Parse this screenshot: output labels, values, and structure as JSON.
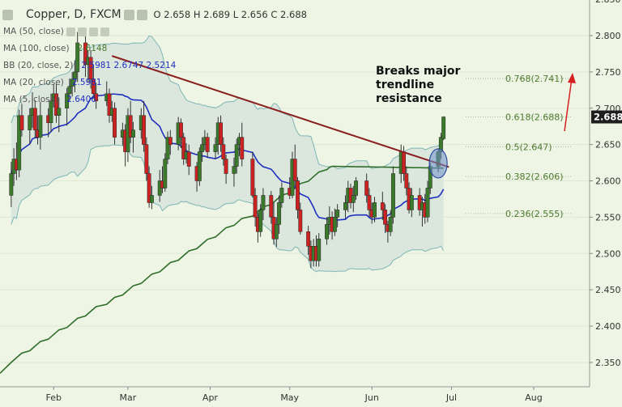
{
  "header": {
    "symbol": "Copper, D, FXCM",
    "ohlc": "O 2.658 H 2.689 L 2.656 C 2.688"
  },
  "indicators": [
    {
      "label": "MA (50, close)",
      "value": "",
      "color": "#444444"
    },
    {
      "label": "MA (100, close)",
      "value": "2.6148",
      "color": "#4a7a2a"
    },
    {
      "label": "BB (20, close, 2)",
      "value": "2.5981  2.6747  2.5214",
      "color": "#1f2fbf"
    },
    {
      "label": "MA (20, close)",
      "value": "2.5981",
      "color": "#1f2fbf"
    },
    {
      "label": "MA (5, close)",
      "value": "2.6406",
      "color": "#444444"
    }
  ],
  "annotation": {
    "lines": [
      "Breaks major",
      "trendline",
      "resistance"
    ]
  },
  "colors": {
    "background": "#eef5e4",
    "bull": "#3a7a2a",
    "bear": "#cc2222",
    "ma20": "#1f2fbf",
    "ma100": "#4e7a2e",
    "ma200": "#2f6e2a",
    "bands_fill": "#d7e4dc",
    "bands_line": "#7fb5b5",
    "trendline": "#8a1f1f",
    "arrow": "#d42020",
    "fib": "#4d7a2e",
    "last_price_bg": "#1e1e1e"
  },
  "chart_data": {
    "type": "candlestick",
    "x_axis": [
      "Feb",
      "Mar",
      "Apr",
      "May",
      "Jun",
      "Jul",
      "Aug"
    ],
    "y_axis": [
      2.35,
      2.4,
      2.45,
      2.5,
      2.55,
      2.6,
      2.65,
      2.7,
      2.75,
      2.8,
      2.85
    ],
    "ylim": [
      2.34,
      2.86
    ],
    "last_price": "2.688",
    "fib_levels": [
      {
        "label": "0.768(2.741)",
        "value": 2.741
      },
      {
        "label": "0.618(2.688)",
        "value": 2.688
      },
      {
        "label": "0.5(2.647)",
        "value": 2.647
      },
      {
        "label": "0.382(2.606)",
        "value": 2.606
      },
      {
        "label": "0.236(2.555)",
        "value": 2.555
      }
    ],
    "trendline": {
      "start": {
        "date": "2017-02-23",
        "value": 2.772
      },
      "end": {
        "date": "2017-06-30",
        "value": 2.619
      }
    },
    "breakout_marker": {
      "date": "2017-06-26",
      "value": 2.624
    },
    "candles": [
      {
        "d": "2017-01-16",
        "o": 2.58,
        "h": 2.626,
        "l": 2.564,
        "c": 2.61
      },
      {
        "d": "2017-01-17",
        "o": 2.61,
        "h": 2.645,
        "l": 2.593,
        "c": 2.63
      },
      {
        "d": "2017-01-18",
        "o": 2.63,
        "h": 2.653,
        "l": 2.601,
        "c": 2.615
      },
      {
        "d": "2017-01-19",
        "o": 2.615,
        "h": 2.698,
        "l": 2.605,
        "c": 2.69
      },
      {
        "d": "2017-01-20",
        "o": 2.69,
        "h": 2.706,
        "l": 2.661,
        "c": 2.67
      },
      {
        "d": "2017-01-23",
        "o": 2.67,
        "h": 2.7,
        "l": 2.65,
        "c": 2.69
      },
      {
        "d": "2017-01-24",
        "o": 2.69,
        "h": 2.722,
        "l": 2.673,
        "c": 2.7
      },
      {
        "d": "2017-01-25",
        "o": 2.7,
        "h": 2.711,
        "l": 2.659,
        "c": 2.67
      },
      {
        "d": "2017-01-26",
        "o": 2.67,
        "h": 2.69,
        "l": 2.65,
        "c": 2.66
      },
      {
        "d": "2017-01-27",
        "o": 2.66,
        "h": 2.709,
        "l": 2.643,
        "c": 2.69
      },
      {
        "d": "2017-01-30",
        "o": 2.69,
        "h": 2.7,
        "l": 2.66,
        "c": 2.68
      },
      {
        "d": "2017-01-31",
        "o": 2.68,
        "h": 2.72,
        "l": 2.667,
        "c": 2.71
      },
      {
        "d": "2017-02-01",
        "o": 2.71,
        "h": 2.733,
        "l": 2.701,
        "c": 2.72
      },
      {
        "d": "2017-02-02",
        "o": 2.72,
        "h": 2.733,
        "l": 2.68,
        "c": 2.69
      },
      {
        "d": "2017-02-03",
        "o": 2.69,
        "h": 2.715,
        "l": 2.667,
        "c": 2.7
      },
      {
        "d": "2017-02-06",
        "o": 2.7,
        "h": 2.728,
        "l": 2.676,
        "c": 2.72
      },
      {
        "d": "2017-02-07",
        "o": 2.72,
        "h": 2.741,
        "l": 2.71,
        "c": 2.73
      },
      {
        "d": "2017-02-08",
        "o": 2.73,
        "h": 2.75,
        "l": 2.716,
        "c": 2.74
      },
      {
        "d": "2017-02-09",
        "o": 2.74,
        "h": 2.766,
        "l": 2.722,
        "c": 2.75
      },
      {
        "d": "2017-02-10",
        "o": 2.75,
        "h": 2.805,
        "l": 2.736,
        "c": 2.79
      },
      {
        "d": "2017-02-13",
        "o": 2.79,
        "h": 2.8,
        "l": 2.743,
        "c": 2.76
      },
      {
        "d": "2017-02-14",
        "o": 2.76,
        "h": 2.78,
        "l": 2.736,
        "c": 2.77
      },
      {
        "d": "2017-02-15",
        "o": 2.77,
        "h": 2.78,
        "l": 2.727,
        "c": 2.74
      },
      {
        "d": "2017-02-16",
        "o": 2.74,
        "h": 2.76,
        "l": 2.714,
        "c": 2.72
      },
      {
        "d": "2017-02-17",
        "o": 2.72,
        "h": 2.735,
        "l": 2.699,
        "c": 2.71
      },
      {
        "d": "2017-02-21",
        "o": 2.71,
        "h": 2.737,
        "l": 2.703,
        "c": 2.72
      },
      {
        "d": "2017-02-22",
        "o": 2.72,
        "h": 2.727,
        "l": 2.68,
        "c": 2.69
      },
      {
        "d": "2017-02-23",
        "o": 2.69,
        "h": 2.71,
        "l": 2.681,
        "c": 2.7
      },
      {
        "d": "2017-02-24",
        "o": 2.7,
        "h": 2.708,
        "l": 2.65,
        "c": 2.66
      },
      {
        "d": "2017-02-27",
        "o": 2.66,
        "h": 2.68,
        "l": 2.649,
        "c": 2.67
      },
      {
        "d": "2017-02-28",
        "o": 2.67,
        "h": 2.678,
        "l": 2.62,
        "c": 2.64
      },
      {
        "d": "2017-03-01",
        "o": 2.64,
        "h": 2.7,
        "l": 2.626,
        "c": 2.69
      },
      {
        "d": "2017-03-02",
        "o": 2.69,
        "h": 2.71,
        "l": 2.652,
        "c": 2.66
      },
      {
        "d": "2017-03-03",
        "o": 2.66,
        "h": 2.681,
        "l": 2.639,
        "c": 2.67
      },
      {
        "d": "2017-03-06",
        "o": 2.67,
        "h": 2.7,
        "l": 2.658,
        "c": 2.69
      },
      {
        "d": "2017-03-07",
        "o": 2.69,
        "h": 2.71,
        "l": 2.64,
        "c": 2.65
      },
      {
        "d": "2017-03-08",
        "o": 2.65,
        "h": 2.66,
        "l": 2.6,
        "c": 2.61
      },
      {
        "d": "2017-03-09",
        "o": 2.61,
        "h": 2.62,
        "l": 2.563,
        "c": 2.57
      },
      {
        "d": "2017-03-10",
        "o": 2.57,
        "h": 2.593,
        "l": 2.561,
        "c": 2.58
      },
      {
        "d": "2017-03-13",
        "o": 2.58,
        "h": 2.615,
        "l": 2.571,
        "c": 2.6
      },
      {
        "d": "2017-03-14",
        "o": 2.6,
        "h": 2.62,
        "l": 2.583,
        "c": 2.59
      },
      {
        "d": "2017-03-15",
        "o": 2.59,
        "h": 2.638,
        "l": 2.585,
        "c": 2.63
      },
      {
        "d": "2017-03-16",
        "o": 2.63,
        "h": 2.668,
        "l": 2.623,
        "c": 2.66
      },
      {
        "d": "2017-03-17",
        "o": 2.66,
        "h": 2.67,
        "l": 2.636,
        "c": 2.65
      },
      {
        "d": "2017-03-20",
        "o": 2.65,
        "h": 2.688,
        "l": 2.642,
        "c": 2.68
      },
      {
        "d": "2017-03-21",
        "o": 2.68,
        "h": 2.686,
        "l": 2.645,
        "c": 2.66
      },
      {
        "d": "2017-03-22",
        "o": 2.66,
        "h": 2.666,
        "l": 2.622,
        "c": 2.63
      },
      {
        "d": "2017-03-23",
        "o": 2.63,
        "h": 2.652,
        "l": 2.624,
        "c": 2.64
      },
      {
        "d": "2017-03-24",
        "o": 2.64,
        "h": 2.65,
        "l": 2.608,
        "c": 2.62
      },
      {
        "d": "2017-03-27",
        "o": 2.62,
        "h": 2.626,
        "l": 2.585,
        "c": 2.6
      },
      {
        "d": "2017-03-28",
        "o": 2.6,
        "h": 2.646,
        "l": 2.593,
        "c": 2.64
      },
      {
        "d": "2017-03-29",
        "o": 2.64,
        "h": 2.66,
        "l": 2.626,
        "c": 2.65
      },
      {
        "d": "2017-03-30",
        "o": 2.65,
        "h": 2.67,
        "l": 2.642,
        "c": 2.66
      },
      {
        "d": "2017-03-31",
        "o": 2.66,
        "h": 2.666,
        "l": 2.632,
        "c": 2.64
      },
      {
        "d": "2017-04-03",
        "o": 2.64,
        "h": 2.66,
        "l": 2.63,
        "c": 2.65
      },
      {
        "d": "2017-04-04",
        "o": 2.65,
        "h": 2.688,
        "l": 2.636,
        "c": 2.68
      },
      {
        "d": "2017-04-05",
        "o": 2.68,
        "h": 2.69,
        "l": 2.64,
        "c": 2.65
      },
      {
        "d": "2017-04-06",
        "o": 2.65,
        "h": 2.66,
        "l": 2.621,
        "c": 2.63
      },
      {
        "d": "2017-04-07",
        "o": 2.63,
        "h": 2.636,
        "l": 2.596,
        "c": 2.61
      },
      {
        "d": "2017-04-10",
        "o": 2.61,
        "h": 2.632,
        "l": 2.592,
        "c": 2.62
      },
      {
        "d": "2017-04-11",
        "o": 2.62,
        "h": 2.658,
        "l": 2.61,
        "c": 2.65
      },
      {
        "d": "2017-04-12",
        "o": 2.65,
        "h": 2.666,
        "l": 2.634,
        "c": 2.66
      },
      {
        "d": "2017-04-13",
        "o": 2.66,
        "h": 2.68,
        "l": 2.62,
        "c": 2.63
      },
      {
        "d": "2017-04-17",
        "o": 2.63,
        "h": 2.64,
        "l": 2.577,
        "c": 2.58
      },
      {
        "d": "2017-04-18",
        "o": 2.58,
        "h": 2.59,
        "l": 2.537,
        "c": 2.55
      },
      {
        "d": "2017-04-19",
        "o": 2.55,
        "h": 2.556,
        "l": 2.515,
        "c": 2.53
      },
      {
        "d": "2017-04-20",
        "o": 2.53,
        "h": 2.568,
        "l": 2.523,
        "c": 2.56
      },
      {
        "d": "2017-04-21",
        "o": 2.56,
        "h": 2.59,
        "l": 2.546,
        "c": 2.58
      },
      {
        "d": "2017-04-24",
        "o": 2.58,
        "h": 2.586,
        "l": 2.541,
        "c": 2.55
      },
      {
        "d": "2017-04-25",
        "o": 2.55,
        "h": 2.57,
        "l": 2.512,
        "c": 2.52
      },
      {
        "d": "2017-04-26",
        "o": 2.52,
        "h": 2.55,
        "l": 2.509,
        "c": 2.54
      },
      {
        "d": "2017-04-27",
        "o": 2.54,
        "h": 2.58,
        "l": 2.527,
        "c": 2.57
      },
      {
        "d": "2017-04-28",
        "o": 2.57,
        "h": 2.598,
        "l": 2.563,
        "c": 2.59
      },
      {
        "d": "2017-05-01",
        "o": 2.59,
        "h": 2.605,
        "l": 2.575,
        "c": 2.58
      },
      {
        "d": "2017-05-02",
        "o": 2.58,
        "h": 2.64,
        "l": 2.576,
        "c": 2.63
      },
      {
        "d": "2017-05-03",
        "o": 2.63,
        "h": 2.65,
        "l": 2.592,
        "c": 2.6
      },
      {
        "d": "2017-05-04",
        "o": 2.6,
        "h": 2.605,
        "l": 2.548,
        "c": 2.56
      },
      {
        "d": "2017-05-05",
        "o": 2.56,
        "h": 2.57,
        "l": 2.526,
        "c": 2.53
      },
      {
        "d": "2017-05-08",
        "o": 2.53,
        "h": 2.538,
        "l": 2.498,
        "c": 2.51
      },
      {
        "d": "2017-05-09",
        "o": 2.51,
        "h": 2.518,
        "l": 2.48,
        "c": 2.49
      },
      {
        "d": "2017-05-10",
        "o": 2.49,
        "h": 2.52,
        "l": 2.482,
        "c": 2.51
      },
      {
        "d": "2017-05-11",
        "o": 2.51,
        "h": 2.525,
        "l": 2.482,
        "c": 2.49
      },
      {
        "d": "2017-05-12",
        "o": 2.49,
        "h": 2.528,
        "l": 2.482,
        "c": 2.52
      },
      {
        "d": "2017-05-15",
        "o": 2.52,
        "h": 2.55,
        "l": 2.512,
        "c": 2.54
      },
      {
        "d": "2017-05-16",
        "o": 2.54,
        "h": 2.565,
        "l": 2.526,
        "c": 2.55
      },
      {
        "d": "2017-05-17",
        "o": 2.55,
        "h": 2.558,
        "l": 2.519,
        "c": 2.53
      },
      {
        "d": "2017-05-18",
        "o": 2.53,
        "h": 2.562,
        "l": 2.524,
        "c": 2.55
      },
      {
        "d": "2017-05-19",
        "o": 2.55,
        "h": 2.568,
        "l": 2.536,
        "c": 2.56
      },
      {
        "d": "2017-05-22",
        "o": 2.56,
        "h": 2.58,
        "l": 2.548,
        "c": 2.57
      },
      {
        "d": "2017-05-23",
        "o": 2.57,
        "h": 2.6,
        "l": 2.557,
        "c": 2.59
      },
      {
        "d": "2017-05-24",
        "o": 2.59,
        "h": 2.596,
        "l": 2.562,
        "c": 2.57
      },
      {
        "d": "2017-05-25",
        "o": 2.57,
        "h": 2.593,
        "l": 2.557,
        "c": 2.58
      },
      {
        "d": "2017-05-26",
        "o": 2.58,
        "h": 2.605,
        "l": 2.574,
        "c": 2.6
      },
      {
        "d": "2017-05-30",
        "o": 2.6,
        "h": 2.61,
        "l": 2.57,
        "c": 2.58
      },
      {
        "d": "2017-05-31",
        "o": 2.58,
        "h": 2.59,
        "l": 2.55,
        "c": 2.56
      },
      {
        "d": "2017-06-01",
        "o": 2.56,
        "h": 2.57,
        "l": 2.541,
        "c": 2.55
      },
      {
        "d": "2017-06-02",
        "o": 2.55,
        "h": 2.578,
        "l": 2.543,
        "c": 2.57
      },
      {
        "d": "2017-06-05",
        "o": 2.57,
        "h": 2.585,
        "l": 2.546,
        "c": 2.56
      },
      {
        "d": "2017-06-06",
        "o": 2.56,
        "h": 2.568,
        "l": 2.528,
        "c": 2.54
      },
      {
        "d": "2017-06-07",
        "o": 2.54,
        "h": 2.545,
        "l": 2.515,
        "c": 2.53
      },
      {
        "d": "2017-06-08",
        "o": 2.53,
        "h": 2.56,
        "l": 2.524,
        "c": 2.55
      },
      {
        "d": "2017-06-09",
        "o": 2.55,
        "h": 2.62,
        "l": 2.541,
        "c": 2.61
      },
      {
        "d": "2017-06-12",
        "o": 2.61,
        "h": 2.65,
        "l": 2.597,
        "c": 2.64
      },
      {
        "d": "2017-06-13",
        "o": 2.64,
        "h": 2.648,
        "l": 2.6,
        "c": 2.61
      },
      {
        "d": "2017-06-14",
        "o": 2.61,
        "h": 2.62,
        "l": 2.58,
        "c": 2.59
      },
      {
        "d": "2017-06-15",
        "o": 2.59,
        "h": 2.598,
        "l": 2.555,
        "c": 2.56
      },
      {
        "d": "2017-06-16",
        "o": 2.56,
        "h": 2.59,
        "l": 2.55,
        "c": 2.58
      },
      {
        "d": "2017-06-19",
        "o": 2.58,
        "h": 2.59,
        "l": 2.552,
        "c": 2.56
      },
      {
        "d": "2017-06-20",
        "o": 2.56,
        "h": 2.578,
        "l": 2.537,
        "c": 2.57
      },
      {
        "d": "2017-06-21",
        "o": 2.57,
        "h": 2.582,
        "l": 2.541,
        "c": 2.55
      },
      {
        "d": "2017-06-22",
        "o": 2.55,
        "h": 2.6,
        "l": 2.543,
        "c": 2.59
      },
      {
        "d": "2017-06-23",
        "o": 2.59,
        "h": 2.625,
        "l": 2.582,
        "c": 2.62
      },
      {
        "d": "2017-06-26",
        "o": 2.62,
        "h": 2.645,
        "l": 2.612,
        "c": 2.64
      },
      {
        "d": "2017-06-27",
        "o": 2.64,
        "h": 2.666,
        "l": 2.63,
        "c": 2.66
      },
      {
        "d": "2017-06-28",
        "o": 2.658,
        "h": 2.689,
        "l": 2.656,
        "c": 2.688
      }
    ]
  }
}
